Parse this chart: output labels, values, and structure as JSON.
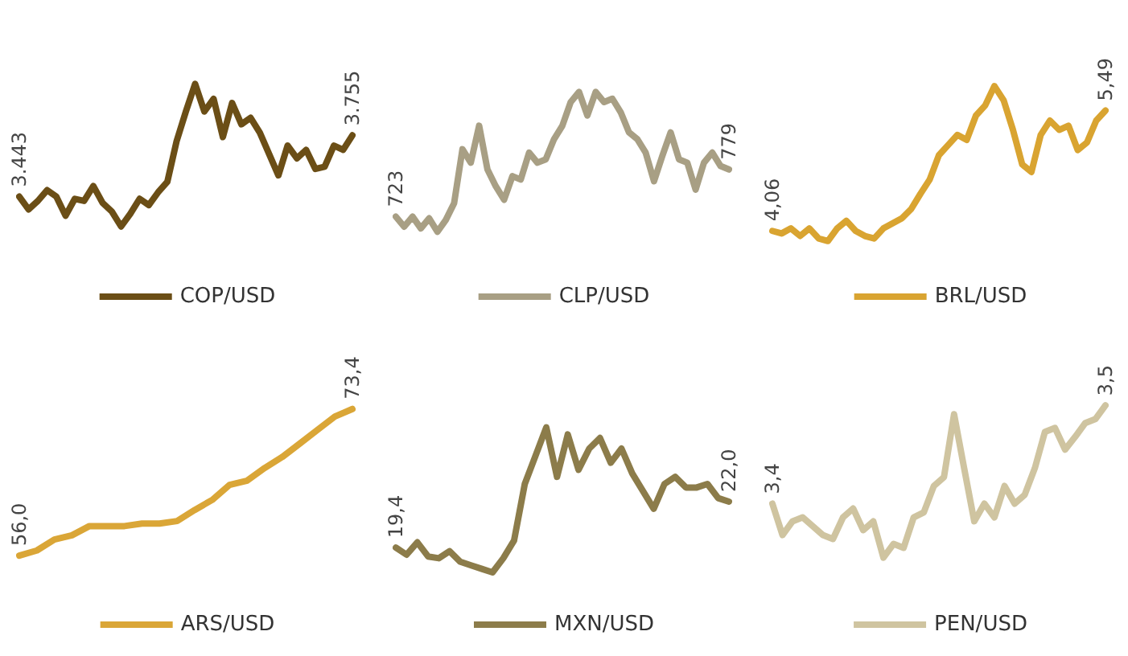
{
  "chart_data": [
    {
      "type": "line",
      "categories": [
        null,
        null,
        null,
        null,
        null,
        null,
        null,
        null,
        null,
        null,
        null,
        null,
        null,
        null,
        null,
        null,
        null,
        null,
        null,
        null,
        null,
        null,
        null,
        null,
        null,
        null,
        null,
        null,
        null,
        null,
        null,
        null,
        null,
        null,
        null,
        null,
        null
      ],
      "legend": "bottom",
      "tick_labels": false,
      "series": [
        {
          "name": "COP/USD",
          "color": "#6b4e16",
          "values": [
            3443,
            3378,
            3421,
            3476,
            3443,
            3346,
            3432,
            3421,
            3497,
            3411,
            3367,
            3291,
            3356,
            3432,
            3400,
            3465,
            3519,
            3725,
            3876,
            4017,
            3876,
            3941,
            3746,
            3920,
            3811,
            3844,
            3768,
            3660,
            3551,
            3703,
            3638,
            3681,
            3584,
            3595,
            3703,
            3681,
            3755
          ],
          "value_labels": [
            "3.443",
            null,
            null,
            null,
            null,
            null,
            null,
            null,
            null,
            null,
            null,
            null,
            null,
            null,
            null,
            null,
            null,
            null,
            null,
            null,
            null,
            null,
            null,
            null,
            null,
            null,
            null,
            null,
            null,
            null,
            null,
            null,
            null,
            null,
            null,
            null,
            "3.755"
          ]
        }
      ]
    },
    {
      "type": "line",
      "categories": [
        null,
        null,
        null,
        null,
        null,
        null,
        null,
        null,
        null,
        null,
        null,
        null,
        null,
        null,
        null,
        null,
        null,
        null,
        null,
        null,
        null,
        null,
        null,
        null,
        null,
        null,
        null,
        null,
        null,
        null,
        null,
        null,
        null,
        null,
        null,
        null,
        null,
        null,
        null,
        null,
        null
      ],
      "legend": "bottom",
      "tick_labels": false,
      "series": [
        {
          "name": "CLP/USD",
          "color": "#a89f84",
          "values": [
            723,
            711,
            723,
            709,
            721,
            705,
            719,
            739,
            803,
            787,
            831,
            779,
            759,
            743,
            771,
            767,
            799,
            787,
            791,
            815,
            831,
            859,
            871,
            843,
            871,
            859,
            863,
            847,
            823,
            815,
            799,
            765,
            795,
            823,
            791,
            787,
            755,
            787,
            799,
            783,
            779
          ],
          "value_labels": [
            "723",
            null,
            null,
            null,
            null,
            null,
            null,
            null,
            null,
            null,
            null,
            null,
            null,
            null,
            null,
            null,
            null,
            null,
            null,
            null,
            null,
            null,
            null,
            null,
            null,
            null,
            null,
            null,
            null,
            null,
            null,
            null,
            null,
            null,
            null,
            null,
            null,
            null,
            null,
            null,
            "779"
          ]
        }
      ]
    },
    {
      "type": "line",
      "categories": [
        null,
        null,
        null,
        null,
        null,
        null,
        null,
        null,
        null,
        null,
        null,
        null,
        null,
        null,
        null,
        null,
        null,
        null,
        null,
        null,
        null,
        null,
        null,
        null,
        null,
        null,
        null,
        null,
        null,
        null,
        null,
        null,
        null,
        null,
        null,
        null,
        null
      ],
      "legend": "bottom",
      "tick_labels": false,
      "series": [
        {
          "name": "BRL/USD",
          "color": "#d9a431",
          "values": [
            4.06,
            4.03,
            4.09,
            4.0,
            4.09,
            3.97,
            3.94,
            4.09,
            4.18,
            4.06,
            4.0,
            3.97,
            4.09,
            4.15,
            4.21,
            4.32,
            4.5,
            4.67,
            4.96,
            5.08,
            5.2,
            5.14,
            5.43,
            5.55,
            5.78,
            5.61,
            5.26,
            4.85,
            4.76,
            5.2,
            5.37,
            5.26,
            5.31,
            5.02,
            5.11,
            5.37,
            5.49
          ],
          "value_labels": [
            "4,06",
            null,
            null,
            null,
            null,
            null,
            null,
            null,
            null,
            null,
            null,
            null,
            null,
            null,
            null,
            null,
            null,
            null,
            null,
            null,
            null,
            null,
            null,
            null,
            null,
            null,
            null,
            null,
            null,
            null,
            null,
            null,
            null,
            null,
            null,
            null,
            "5,49"
          ]
        }
      ]
    },
    {
      "type": "line",
      "categories": [
        null,
        null,
        null,
        null,
        null,
        null,
        null,
        null,
        null,
        null,
        null,
        null,
        null,
        null,
        null,
        null,
        null,
        null,
        null,
        null
      ],
      "legend": "bottom",
      "tick_labels": false,
      "series": [
        {
          "name": "ARS/USD",
          "color": "#daa637",
          "values": [
            56.0,
            56.6,
            57.9,
            58.4,
            59.5,
            59.5,
            59.5,
            59.8,
            59.8,
            60.1,
            61.4,
            62.6,
            64.4,
            64.9,
            66.4,
            67.7,
            69.3,
            70.9,
            72.5,
            73.4
          ],
          "value_labels": [
            "56,0",
            null,
            null,
            null,
            null,
            null,
            null,
            null,
            null,
            null,
            null,
            null,
            null,
            null,
            null,
            null,
            null,
            null,
            null,
            "73,4"
          ]
        }
      ]
    },
    {
      "type": "line",
      "categories": [
        null,
        null,
        null,
        null,
        null,
        null,
        null,
        null,
        null,
        null,
        null,
        null,
        null,
        null,
        null,
        null,
        null,
        null,
        null,
        null,
        null,
        null,
        null,
        null,
        null,
        null,
        null,
        null,
        null,
        null,
        null,
        null
      ],
      "legend": "bottom",
      "tick_labels": false,
      "series": [
        {
          "name": "MXN/USD",
          "color": "#8c7c4a",
          "values": [
            19.4,
            19.0,
            19.7,
            18.9,
            18.8,
            19.2,
            18.6,
            18.4,
            18.2,
            18.0,
            18.8,
            19.8,
            23.0,
            24.6,
            26.2,
            23.4,
            25.8,
            23.8,
            25.0,
            25.6,
            24.2,
            25.0,
            23.6,
            22.6,
            21.6,
            23.0,
            23.4,
            22.8,
            22.8,
            23.0,
            22.2,
            22.0
          ],
          "value_labels": [
            "19,4",
            null,
            null,
            null,
            null,
            null,
            null,
            null,
            null,
            null,
            null,
            null,
            null,
            null,
            null,
            null,
            null,
            null,
            null,
            null,
            null,
            null,
            null,
            null,
            null,
            null,
            null,
            null,
            null,
            null,
            null,
            "22,0"
          ]
        }
      ]
    },
    {
      "type": "line",
      "categories": [
        null,
        null,
        null,
        null,
        null,
        null,
        null,
        null,
        null,
        null,
        null,
        null,
        null,
        null,
        null,
        null,
        null,
        null,
        null,
        null,
        null,
        null,
        null,
        null,
        null,
        null,
        null,
        null,
        null,
        null,
        null,
        null,
        null,
        null
      ],
      "legend": "bottom",
      "tick_labels": false,
      "series": [
        {
          "name": "PEN/USD",
          "color": "#cfc4a0",
          "values": [
            3.4,
            3.368,
            3.382,
            3.386,
            3.377,
            3.368,
            3.364,
            3.386,
            3.395,
            3.373,
            3.382,
            3.345,
            3.359,
            3.355,
            3.386,
            3.391,
            3.418,
            3.427,
            3.491,
            3.436,
            3.382,
            3.4,
            3.386,
            3.418,
            3.4,
            3.409,
            3.436,
            3.473,
            3.477,
            3.455,
            3.468,
            3.482,
            3.486,
            3.5
          ],
          "value_labels": [
            "3,4",
            null,
            null,
            null,
            null,
            null,
            null,
            null,
            null,
            null,
            null,
            null,
            null,
            null,
            null,
            null,
            null,
            null,
            null,
            null,
            null,
            null,
            null,
            null,
            null,
            null,
            null,
            null,
            null,
            null,
            null,
            null,
            null,
            "3,5"
          ]
        }
      ]
    }
  ]
}
